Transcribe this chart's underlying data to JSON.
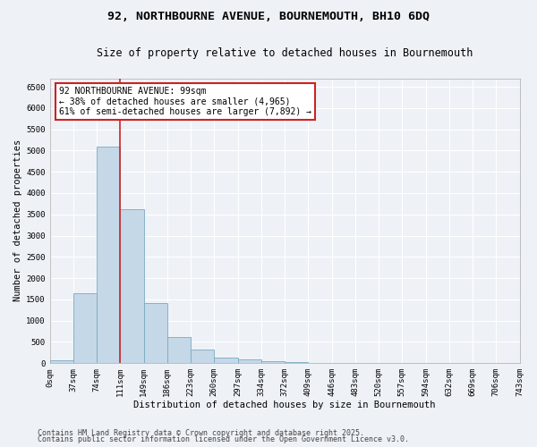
{
  "title_line1": "92, NORTHBOURNE AVENUE, BOURNEMOUTH, BH10 6DQ",
  "title_line2": "Size of property relative to detached houses in Bournemouth",
  "xlabel": "Distribution of detached houses by size in Bournemouth",
  "ylabel": "Number of detached properties",
  "bar_values": [
    70,
    1640,
    5100,
    3620,
    1420,
    620,
    310,
    130,
    80,
    50,
    30,
    10,
    5,
    2,
    1,
    1,
    0,
    0,
    0,
    0
  ],
  "bar_labels": [
    "0sqm",
    "37sqm",
    "74sqm",
    "111sqm",
    "149sqm",
    "186sqm",
    "223sqm",
    "260sqm",
    "297sqm",
    "334sqm",
    "372sqm",
    "409sqm",
    "446sqm",
    "483sqm",
    "520sqm",
    "557sqm",
    "594sqm",
    "632sqm",
    "669sqm",
    "706sqm",
    "743sqm"
  ],
  "bar_color": "#c5d8e8",
  "bar_edge_color": "#7aaabf",
  "vline_x": 3.0,
  "vline_color": "#cc2222",
  "annotation_text": "92 NORTHBOURNE AVENUE: 99sqm\n← 38% of detached houses are smaller (4,965)\n61% of semi-detached houses are larger (7,892) →",
  "annotation_box_color": "#ffffff",
  "annotation_box_edge_color": "#cc2222",
  "ylim": [
    0,
    6700
  ],
  "yticks": [
    0,
    500,
    1000,
    1500,
    2000,
    2500,
    3000,
    3500,
    4000,
    4500,
    5000,
    5500,
    6000,
    6500
  ],
  "footer_line1": "Contains HM Land Registry data © Crown copyright and database right 2025.",
  "footer_line2": "Contains public sector information licensed under the Open Government Licence v3.0.",
  "background_color": "#eef2f7",
  "grid_color": "#ffffff",
  "title_fontsize": 9.5,
  "subtitle_fontsize": 8.5,
  "axis_label_fontsize": 7.5,
  "tick_fontsize": 6.5,
  "annotation_fontsize": 7,
  "footer_fontsize": 6
}
